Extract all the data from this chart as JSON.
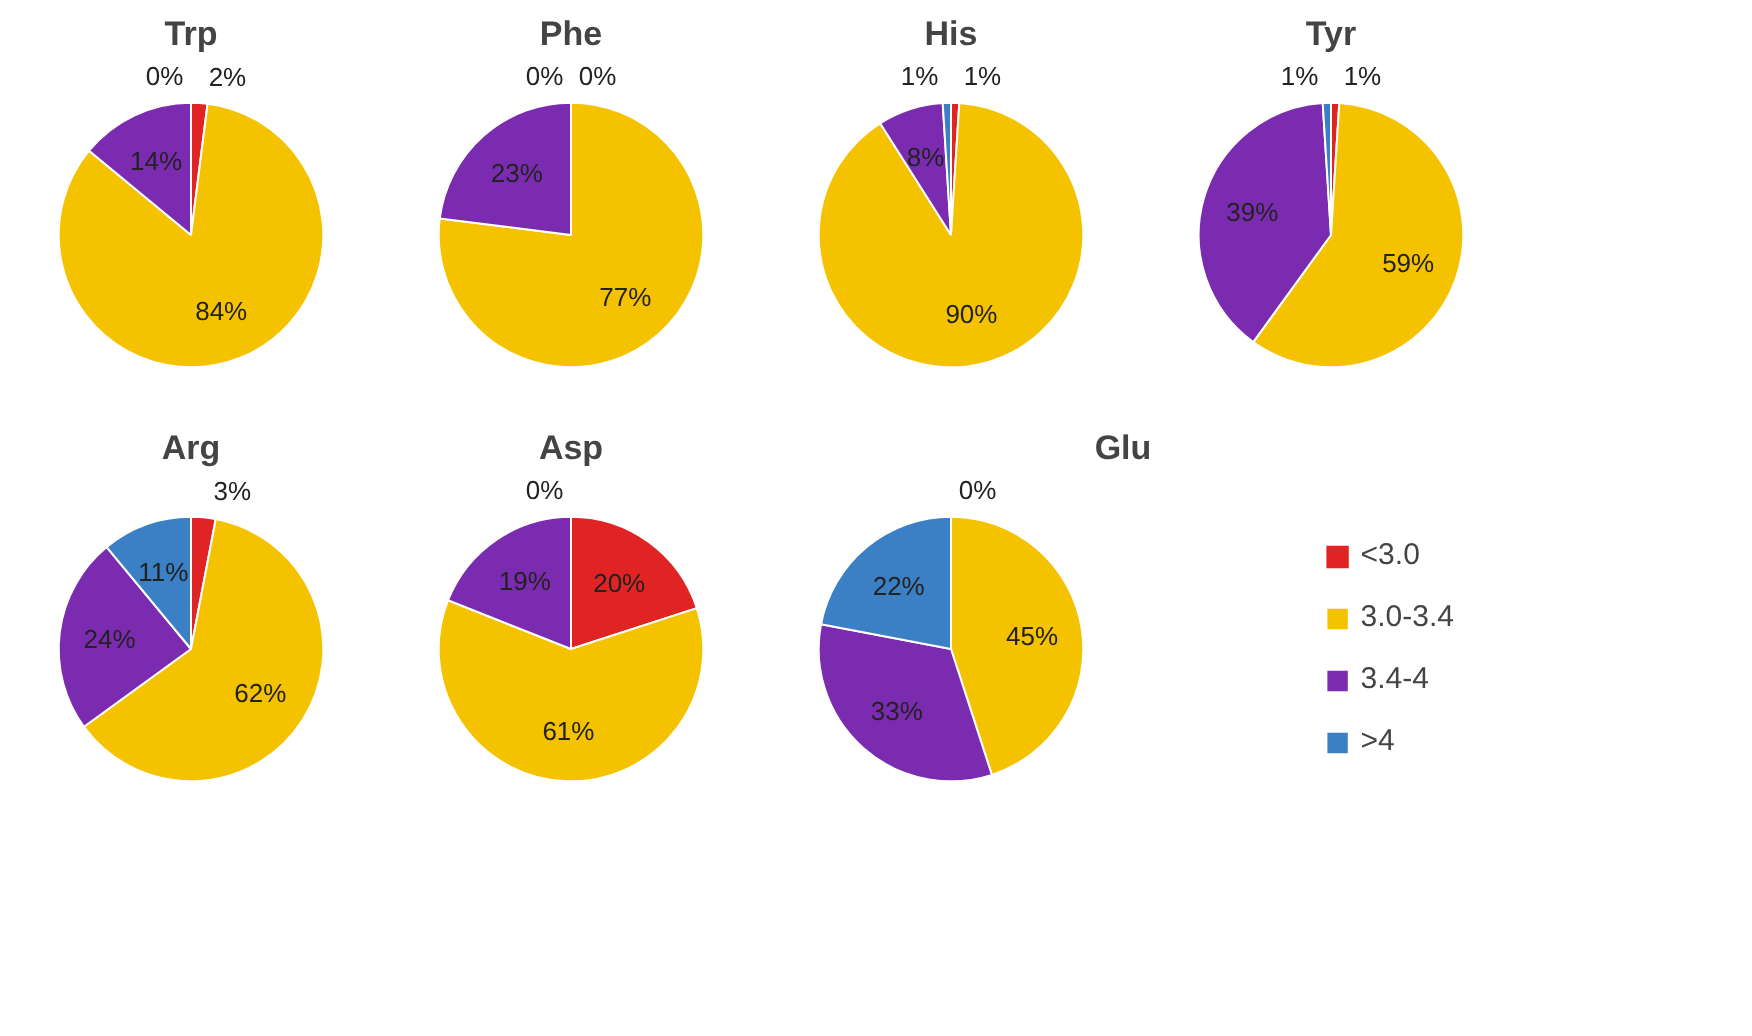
{
  "chart_data": [
    {
      "type": "pie",
      "title": "Trp",
      "categories": [
        null,
        null,
        null,
        null
      ],
      "values": [
        2,
        84,
        14,
        0
      ],
      "value_labels": [
        "2%",
        "84%",
        "14%",
        "0%"
      ],
      "colors": [
        "#e02424",
        "#f5c200",
        "#7b2bb0",
        "#3b7fc4"
      ]
    },
    {
      "type": "pie",
      "title": "Phe",
      "categories": [
        null,
        null,
        null,
        null
      ],
      "values": [
        0,
        77,
        23,
        0
      ],
      "value_labels": [
        "0%",
        "77%",
        "23%",
        "0%"
      ],
      "colors": [
        "#e02424",
        "#f5c200",
        "#7b2bb0",
        "#3b7fc4"
      ]
    },
    {
      "type": "pie",
      "title": "His",
      "categories": [
        null,
        null,
        null,
        null
      ],
      "values": [
        1,
        90,
        8,
        1
      ],
      "value_labels": [
        "1%",
        "90%",
        "8%",
        "1%"
      ],
      "colors": [
        "#e02424",
        "#f5c200",
        "#7b2bb0",
        "#3b7fc4"
      ]
    },
    {
      "type": "pie",
      "title": "Tyr",
      "categories": [
        null,
        null,
        null,
        null
      ],
      "values": [
        1,
        59,
        39,
        1
      ],
      "value_labels": [
        "1%",
        "59%",
        "39%",
        "1%"
      ],
      "colors": [
        "#e02424",
        "#f5c200",
        "#7b2bb0",
        "#3b7fc4"
      ]
    },
    {
      "type": "pie",
      "title": "Arg",
      "categories": [
        null,
        null,
        null,
        null
      ],
      "values": [
        3,
        62,
        24,
        11
      ],
      "value_labels": [
        "3%",
        "62%",
        "24%",
        "11%"
      ],
      "colors": [
        "#e02424",
        "#f5c200",
        "#7b2bb0",
        "#3b7fc4"
      ]
    },
    {
      "type": "pie",
      "title": "Asp",
      "categories": [
        null,
        null,
        null,
        null
      ],
      "values": [
        20,
        61,
        19,
        0
      ],
      "value_labels": [
        "20%",
        "61%",
        "19%",
        "0%"
      ],
      "colors": [
        "#e02424",
        "#f5c200",
        "#7b2bb0",
        "#3b7fc4"
      ]
    },
    {
      "type": "pie",
      "title": "Glu",
      "categories": [
        "<3.0",
        "3.0-3.4",
        "3.4-4",
        ">4"
      ],
      "values": [
        0,
        45,
        33,
        22
      ],
      "value_labels": [
        "0%",
        "45%",
        "33%",
        "22%"
      ],
      "colors": [
        "#e02424",
        "#f5c200",
        "#7b2bb0",
        "#3b7fc4"
      ],
      "legend": "right"
    }
  ]
}
